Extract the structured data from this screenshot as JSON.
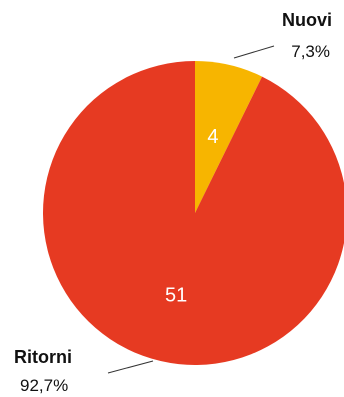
{
  "chart_data": {
    "type": "pie",
    "title": "",
    "start_angle": "top",
    "direction": "clockwise",
    "slices": [
      {
        "label": "Nuovi",
        "value": 4,
        "value_label": "4",
        "percent_label": "7,3%",
        "color": "#f7b500"
      },
      {
        "label": "Ritorni",
        "value": 51,
        "value_label": "51",
        "percent_label": "92,7%",
        "color": "#e63a22"
      }
    ]
  }
}
